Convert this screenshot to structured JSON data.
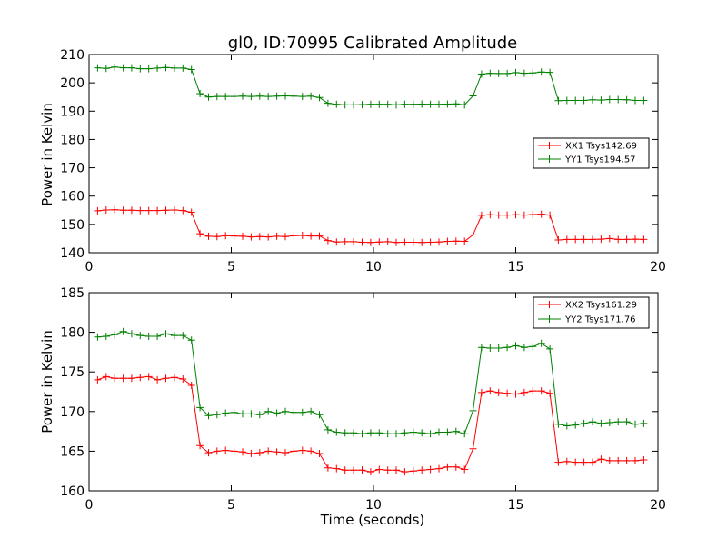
{
  "chart_data": [
    {
      "type": "line",
      "title": "gl0, ID:70995 Calibrated Amplitude",
      "xlabel": "",
      "ylabel": "Power in Kelvin",
      "xlim": [
        0,
        20
      ],
      "ylim": [
        140,
        210
      ],
      "xticks": [
        0,
        5,
        10,
        15,
        20
      ],
      "yticks": [
        140,
        150,
        160,
        170,
        180,
        190,
        200,
        210
      ],
      "legend_position": "right",
      "marker": "+",
      "series": [
        {
          "name": "XX1 Tsys142.69",
          "color": "#ff0000",
          "x": [
            0.3,
            0.6,
            0.9,
            1.2,
            1.5,
            1.8,
            2.1,
            2.4,
            2.7,
            3.0,
            3.3,
            3.6,
            3.9,
            4.2,
            4.5,
            4.8,
            5.1,
            5.4,
            5.7,
            6.0,
            6.3,
            6.6,
            6.9,
            7.2,
            7.5,
            7.8,
            8.1,
            8.4,
            8.7,
            9.0,
            9.3,
            9.6,
            9.9,
            10.2,
            10.5,
            10.8,
            11.1,
            11.4,
            11.7,
            12.0,
            12.3,
            12.6,
            12.9,
            13.2,
            13.5,
            13.8,
            14.1,
            14.4,
            14.7,
            15.0,
            15.3,
            15.6,
            15.9,
            16.2,
            16.5,
            16.8,
            17.1,
            17.4,
            17.7,
            18.0,
            18.3,
            18.6,
            18.9,
            19.2,
            19.5
          ],
          "y": [
            154.8,
            155.1,
            155.2,
            155.0,
            155.0,
            154.9,
            154.9,
            154.9,
            155.0,
            155.1,
            154.9,
            154.3,
            146.7,
            145.8,
            145.7,
            146.0,
            145.9,
            145.8,
            145.6,
            145.7,
            145.6,
            145.8,
            145.7,
            146.0,
            146.1,
            145.9,
            145.9,
            144.3,
            143.8,
            143.9,
            143.9,
            143.7,
            143.6,
            143.8,
            143.9,
            143.6,
            143.7,
            143.7,
            143.6,
            143.7,
            143.8,
            144.0,
            144.1,
            144.0,
            146.3,
            153.2,
            153.4,
            153.3,
            153.3,
            153.4,
            153.3,
            153.5,
            153.6,
            153.3,
            144.5,
            144.7,
            144.7,
            144.7,
            144.7,
            144.8,
            145.0,
            144.7,
            144.7,
            144.8,
            144.7
          ]
        },
        {
          "name": "YY1 Tsys194.57",
          "color": "#008000",
          "x": [
            0.3,
            0.6,
            0.9,
            1.2,
            1.5,
            1.8,
            2.1,
            2.4,
            2.7,
            3.0,
            3.3,
            3.6,
            3.9,
            4.2,
            4.5,
            4.8,
            5.1,
            5.4,
            5.7,
            6.0,
            6.3,
            6.6,
            6.9,
            7.2,
            7.5,
            7.8,
            8.1,
            8.4,
            8.7,
            9.0,
            9.3,
            9.6,
            9.9,
            10.2,
            10.5,
            10.8,
            11.1,
            11.4,
            11.7,
            12.0,
            12.3,
            12.6,
            12.9,
            13.2,
            13.5,
            13.8,
            14.1,
            14.4,
            14.7,
            15.0,
            15.3,
            15.6,
            15.9,
            16.2,
            16.5,
            16.8,
            17.1,
            17.4,
            17.7,
            18.0,
            18.3,
            18.6,
            18.9,
            19.2,
            19.5
          ],
          "y": [
            205.3,
            205.1,
            205.6,
            205.3,
            205.3,
            205.0,
            205.0,
            205.2,
            205.4,
            205.2,
            205.2,
            204.7,
            196.2,
            195.0,
            195.2,
            195.2,
            195.2,
            195.3,
            195.2,
            195.3,
            195.2,
            195.3,
            195.4,
            195.3,
            195.2,
            195.3,
            194.8,
            192.8,
            192.4,
            192.2,
            192.2,
            192.3,
            192.4,
            192.4,
            192.4,
            192.2,
            192.4,
            192.4,
            192.5,
            192.4,
            192.4,
            192.5,
            192.6,
            192.2,
            195.4,
            203.1,
            203.4,
            203.3,
            203.3,
            203.6,
            203.4,
            203.5,
            203.8,
            203.7,
            193.7,
            193.8,
            193.8,
            193.8,
            194.0,
            193.9,
            194.1,
            194.1,
            194.0,
            193.8,
            193.8
          ]
        }
      ]
    },
    {
      "type": "line",
      "title": "",
      "xlabel": "Time (seconds)",
      "ylabel": "Power in Kelvin",
      "xlim": [
        0,
        20
      ],
      "ylim": [
        160,
        185
      ],
      "xticks": [
        0,
        5,
        10,
        15,
        20
      ],
      "yticks": [
        160,
        165,
        170,
        175,
        180,
        185
      ],
      "legend_position": "top-right",
      "marker": "+",
      "series": [
        {
          "name": "XX2 Tsys161.29",
          "color": "#ff0000",
          "x": [
            0.3,
            0.6,
            0.9,
            1.2,
            1.5,
            1.8,
            2.1,
            2.4,
            2.7,
            3.0,
            3.3,
            3.6,
            3.9,
            4.2,
            4.5,
            4.8,
            5.1,
            5.4,
            5.7,
            6.0,
            6.3,
            6.6,
            6.9,
            7.2,
            7.5,
            7.8,
            8.1,
            8.4,
            8.7,
            9.0,
            9.3,
            9.6,
            9.9,
            10.2,
            10.5,
            10.8,
            11.1,
            11.4,
            11.7,
            12.0,
            12.3,
            12.6,
            12.9,
            13.2,
            13.5,
            13.8,
            14.1,
            14.4,
            14.7,
            15.0,
            15.3,
            15.6,
            15.9,
            16.2,
            16.5,
            16.8,
            17.1,
            17.4,
            17.7,
            18.0,
            18.3,
            18.6,
            18.9,
            19.2,
            19.5
          ],
          "y": [
            174.0,
            174.4,
            174.2,
            174.2,
            174.2,
            174.3,
            174.4,
            174.0,
            174.2,
            174.3,
            174.1,
            173.3,
            165.7,
            164.8,
            165.0,
            165.1,
            165.0,
            164.9,
            164.7,
            164.8,
            165.0,
            164.9,
            164.8,
            165.0,
            165.1,
            165.0,
            164.7,
            162.9,
            162.8,
            162.6,
            162.6,
            162.6,
            162.4,
            162.7,
            162.6,
            162.6,
            162.4,
            162.5,
            162.6,
            162.7,
            162.8,
            163.0,
            163.0,
            162.7,
            165.3,
            172.4,
            172.6,
            172.4,
            172.3,
            172.2,
            172.4,
            172.6,
            172.6,
            172.3,
            163.6,
            163.7,
            163.6,
            163.6,
            163.6,
            164.0,
            163.8,
            163.8,
            163.8,
            163.8,
            163.9
          ]
        },
        {
          "name": "YY2 Tsys171.76",
          "color": "#008000",
          "x": [
            0.3,
            0.6,
            0.9,
            1.2,
            1.5,
            1.8,
            2.1,
            2.4,
            2.7,
            3.0,
            3.3,
            3.6,
            3.9,
            4.2,
            4.5,
            4.8,
            5.1,
            5.4,
            5.7,
            6.0,
            6.3,
            6.6,
            6.9,
            7.2,
            7.5,
            7.8,
            8.1,
            8.4,
            8.7,
            9.0,
            9.3,
            9.6,
            9.9,
            10.2,
            10.5,
            10.8,
            11.1,
            11.4,
            11.7,
            12.0,
            12.3,
            12.6,
            12.9,
            13.2,
            13.5,
            13.8,
            14.1,
            14.4,
            14.7,
            15.0,
            15.3,
            15.6,
            15.9,
            16.2,
            16.5,
            16.8,
            17.1,
            17.4,
            17.7,
            18.0,
            18.3,
            18.6,
            18.9,
            19.2,
            19.5
          ],
          "y": [
            179.4,
            179.5,
            179.7,
            180.1,
            179.8,
            179.6,
            179.5,
            179.5,
            179.8,
            179.6,
            179.6,
            179.0,
            170.5,
            169.5,
            169.6,
            169.8,
            169.9,
            169.7,
            169.7,
            169.6,
            170.0,
            169.8,
            170.0,
            169.9,
            169.9,
            170.0,
            169.6,
            167.7,
            167.4,
            167.3,
            167.3,
            167.2,
            167.3,
            167.3,
            167.2,
            167.2,
            167.3,
            167.4,
            167.3,
            167.2,
            167.4,
            167.4,
            167.5,
            167.2,
            170.1,
            178.1,
            178.0,
            178.0,
            178.1,
            178.3,
            178.1,
            178.2,
            178.6,
            177.9,
            168.4,
            168.2,
            168.3,
            168.5,
            168.7,
            168.5,
            168.6,
            168.7,
            168.7,
            168.4,
            168.5
          ]
        }
      ]
    }
  ]
}
